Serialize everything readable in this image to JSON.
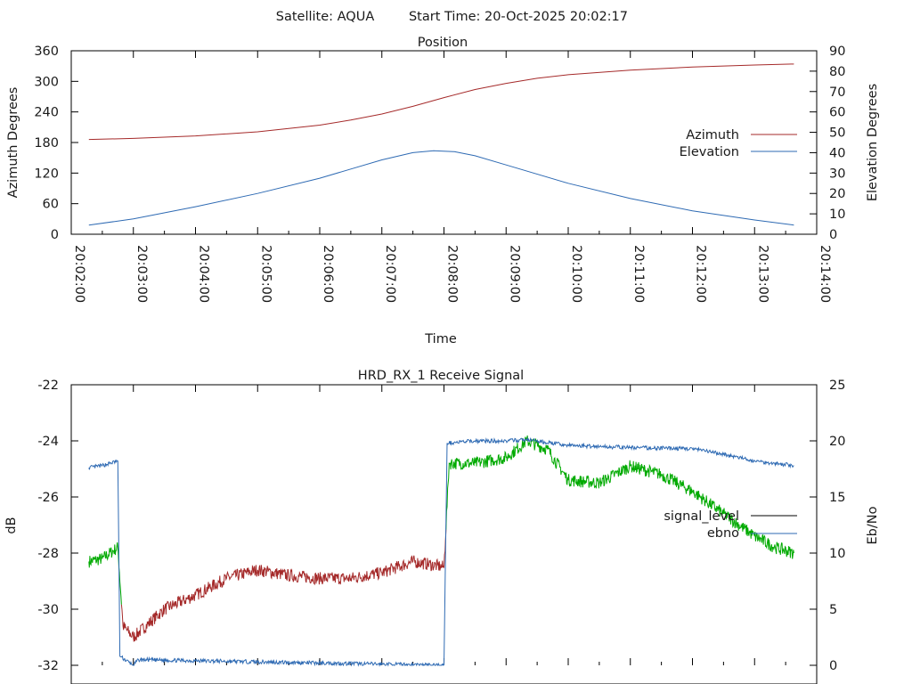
{
  "header": {
    "satellite_text": "Satellite: AQUA",
    "start_time_text": "Start Time: 20-Oct-2025 20:02:17"
  },
  "colors": {
    "azimuth": "#a52a2a",
    "elevation": "#2e6ab3",
    "signal_black": "#000000",
    "signal_red": "#a52a2a",
    "signal_green": "#00aa00",
    "ebno": "#2e6ab3"
  },
  "chart_data": [
    {
      "type": "line",
      "title": "Position",
      "xlabel": "Time",
      "ylabel": "Azimuth Degrees",
      "y2label": "Elevation Degrees",
      "xlim": [
        "20:02:00",
        "20:14:00"
      ],
      "ylim": [
        0,
        360
      ],
      "y2lim": [
        0,
        90
      ],
      "x_ticks": [
        "20:02:00",
        "20:03:00",
        "20:04:00",
        "20:05:00",
        "20:06:00",
        "20:07:00",
        "20:08:00",
        "20:09:00",
        "20:10:00",
        "20:11:00",
        "20:12:00",
        "20:13:00",
        "20:14:00"
      ],
      "y_ticks": [
        0,
        60,
        120,
        180,
        240,
        300,
        360
      ],
      "y2_ticks": [
        0,
        10,
        20,
        30,
        40,
        50,
        60,
        70,
        80,
        90
      ],
      "legend_position": "right",
      "series": [
        {
          "name": "Azimuth",
          "axis": "y",
          "color": "#a52a2a",
          "x": [
            "20:02:17",
            "20:03:00",
            "20:04:00",
            "20:05:00",
            "20:06:00",
            "20:06:30",
            "20:07:00",
            "20:07:30",
            "20:08:00",
            "20:08:30",
            "20:09:00",
            "20:09:30",
            "20:10:00",
            "20:11:00",
            "20:12:00",
            "20:13:00",
            "20:13:38"
          ],
          "values": [
            186,
            188,
            193,
            201,
            214,
            224,
            236,
            251,
            268,
            284,
            296,
            306,
            313,
            322,
            328,
            332,
            334
          ]
        },
        {
          "name": "Elevation",
          "axis": "y2",
          "color": "#2e6ab3",
          "x": [
            "20:02:17",
            "20:03:00",
            "20:04:00",
            "20:05:00",
            "20:06:00",
            "20:06:30",
            "20:07:00",
            "20:07:30",
            "20:07:50",
            "20:08:10",
            "20:08:30",
            "20:09:00",
            "20:10:00",
            "20:11:00",
            "20:12:00",
            "20:13:00",
            "20:13:38"
          ],
          "values": [
            4.5,
            7.5,
            13.5,
            20,
            27.5,
            32,
            36.5,
            40,
            41,
            40.5,
            38.5,
            34,
            25,
            17.5,
            11.5,
            7,
            4.5
          ]
        }
      ]
    },
    {
      "type": "line",
      "title": "HRD_RX_1 Receive Signal",
      "ylabel": "dB",
      "y2label": "Eb/No",
      "xlim": [
        "20:02:00",
        "20:14:00"
      ],
      "ylim": [
        -32,
        -22
      ],
      "y2lim": [
        0,
        25
      ],
      "y_ticks": [
        -32,
        -30,
        -28,
        -26,
        -24,
        -22
      ],
      "y2_ticks": [
        0,
        5,
        10,
        15,
        20,
        25
      ],
      "legend_position": "right",
      "series": [
        {
          "name": "signal_level",
          "axis": "y",
          "color": "#00aa00",
          "low_signal_color": "#a52a2a",
          "x": [
            "20:02:17",
            "20:02:30",
            "20:02:45",
            "20:02:50",
            "20:03:00",
            "20:03:30",
            "20:04:00",
            "20:04:30",
            "20:05:00",
            "20:05:30",
            "20:06:00",
            "20:06:30",
            "20:07:00",
            "20:07:30",
            "20:08:00",
            "20:08:05",
            "20:08:30",
            "20:09:00",
            "20:09:20",
            "20:09:40",
            "20:10:00",
            "20:10:30",
            "20:11:00",
            "20:11:30",
            "20:12:00",
            "20:12:30",
            "20:13:00",
            "20:13:20",
            "20:13:38"
          ],
          "values": [
            -28.3,
            -28.2,
            -27.8,
            -30.6,
            -31.0,
            -30.0,
            -29.5,
            -28.9,
            -28.6,
            -28.8,
            -28.9,
            -28.9,
            -28.7,
            -28.3,
            -28.5,
            -24.8,
            -24.8,
            -24.6,
            -24.0,
            -24.3,
            -25.4,
            -25.5,
            -24.9,
            -25.2,
            -25.8,
            -26.6,
            -27.4,
            -27.8,
            -28.0
          ]
        },
        {
          "name": "ebno",
          "axis": "y2",
          "color": "#2e6ab3",
          "x": [
            "20:02:17",
            "20:02:30",
            "20:02:45",
            "20:02:47",
            "20:03:00",
            "20:03:05",
            "20:08:00",
            "20:08:03",
            "20:08:30",
            "20:09:00",
            "20:09:20",
            "20:10:00",
            "20:11:00",
            "20:12:00",
            "20:12:30",
            "20:13:00",
            "20:13:38"
          ],
          "values": [
            17.6,
            17.8,
            18.2,
            0.8,
            0,
            0.5,
            0,
            19.8,
            20.0,
            20.0,
            20.1,
            19.6,
            19.4,
            19.3,
            18.8,
            18.2,
            17.8
          ]
        }
      ]
    }
  ]
}
